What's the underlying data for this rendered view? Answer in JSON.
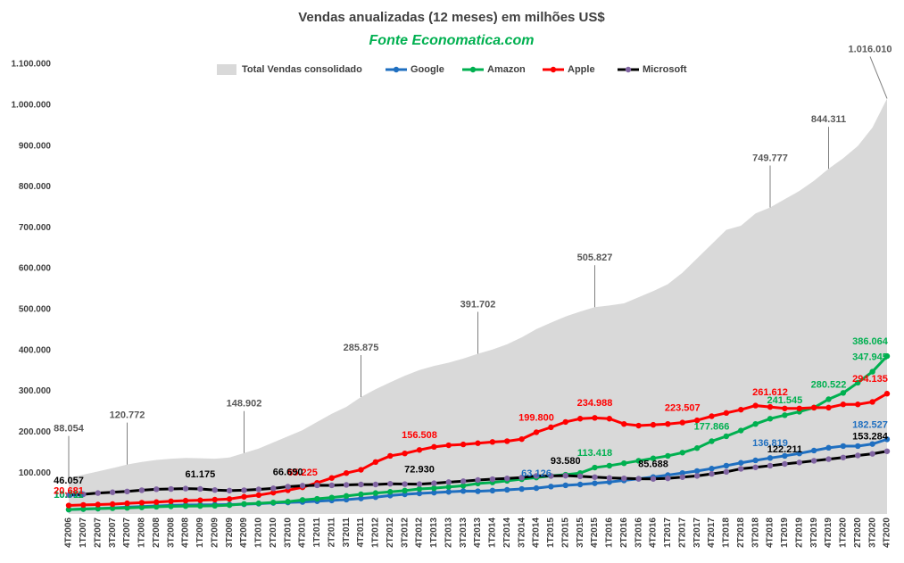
{
  "chart_data": {
    "type": "area_line",
    "title": "Vendas anualizadas (12 meses) em milhões  US$",
    "subtitle": "Fonte Economatica.com",
    "legend": "top",
    "categories": [
      "4T2006",
      "1T2007",
      "2T2007",
      "3T2007",
      "4T2007",
      "1T2008",
      "2T2008",
      "3T2008",
      "4T2008",
      "1T2009",
      "2T2009",
      "3T2009",
      "4T2009",
      "1T2010",
      "2T2010",
      "3T2010",
      "4T2010",
      "1T2011",
      "2T2011",
      "3T2011",
      "4T2011",
      "1T2012",
      "2T2012",
      "3T2012",
      "4T2012",
      "1T2013",
      "2T2013",
      "3T2013",
      "4T2013",
      "1T2014",
      "2T2014",
      "3T2014",
      "4T2014",
      "1T2015",
      "2T2015",
      "3T2015",
      "4T2015",
      "1T2016",
      "2T2016",
      "3T2016",
      "4T2016",
      "1T2017",
      "2T2017",
      "3T2017",
      "4T2017",
      "1T2018",
      "2T2018",
      "3T2018",
      "4T2018",
      "1T2019",
      "2T2019",
      "3T2019",
      "4T2019",
      "1T2020",
      "2T2020",
      "3T2020",
      "4T2020"
    ],
    "ylim": [
      0,
      1100000
    ],
    "yticks": [
      {
        "value": 100000,
        "label": "100.000"
      },
      {
        "value": 200000,
        "label": "200.000"
      },
      {
        "value": 300000,
        "label": "300.000"
      },
      {
        "value": 400000,
        "label": "400.000"
      },
      {
        "value": 500000,
        "label": "500.000"
      },
      {
        "value": 600000,
        "label": "600.000"
      },
      {
        "value": 700000,
        "label": "700.000"
      },
      {
        "value": 800000,
        "label": "800.000"
      },
      {
        "value": 900000,
        "label": "900.000"
      },
      {
        "value": 1000000,
        "label": "1.000.000"
      },
      {
        "value": 1100000,
        "label": "1.100.000"
      }
    ],
    "grid": false,
    "series": [
      {
        "name": "Total Vendas consolidado",
        "kind": "area",
        "color": "#d9d9d9",
        "label_color": "#595959",
        "values": [
          88054,
          96000,
          104000,
          112000,
          120772,
          127000,
          132000,
          135000,
          137000,
          136000,
          135000,
          138000,
          148902,
          160000,
          175000,
          190000,
          205000,
          225000,
          245000,
          262000,
          285875,
          305000,
          322000,
          338000,
          352000,
          362000,
          370000,
          380000,
          391702,
          402000,
          415000,
          432000,
          452000,
          468000,
          483000,
          495000,
          505827,
          510000,
          515000,
          530000,
          545000,
          562000,
          590000,
          625000,
          660000,
          695000,
          705000,
          735000,
          749777,
          770000,
          790000,
          815000,
          844311,
          870000,
          900000,
          945000,
          1016010
        ],
        "value_labels": [
          "88.054",
          null,
          null,
          null,
          "120.772",
          null,
          null,
          null,
          null,
          null,
          null,
          null,
          "148.902",
          null,
          null,
          null,
          null,
          null,
          null,
          null,
          "285.875",
          null,
          null,
          null,
          null,
          null,
          null,
          null,
          "391.702",
          null,
          null,
          null,
          null,
          null,
          null,
          null,
          "505.827",
          null,
          null,
          null,
          null,
          null,
          null,
          null,
          null,
          null,
          null,
          null,
          "749.777",
          null,
          null,
          null,
          "844.311",
          null,
          null,
          null,
          "1.016.010"
        ]
      },
      {
        "name": "Google",
        "kind": "line",
        "color": "#1f6fc0",
        "label_color": "#1f6fc0",
        "values": [
          10605,
          12000,
          13000,
          14500,
          16594,
          18000,
          19500,
          21000,
          21796,
          22000,
          22500,
          23000,
          23651,
          25000,
          27000,
          28000,
          29321,
          31000,
          33000,
          35000,
          37905,
          41000,
          45000,
          48000,
          50175,
          52000,
          54000,
          56000,
          55519,
          57000,
          59000,
          61000,
          63126,
          67000,
          70000,
          72000,
          74989,
          78000,
          82000,
          86000,
          90272,
          95000,
          100000,
          105000,
          110855,
          118000,
          125000,
          131000,
          136819,
          142000,
          148000,
          155000,
          161857,
          166000,
          166000,
          171000,
          182527
        ],
        "value_labels": [
          "10.605",
          null,
          null,
          null,
          null,
          null,
          null,
          null,
          null,
          null,
          null,
          null,
          null,
          null,
          null,
          null,
          null,
          null,
          null,
          null,
          null,
          null,
          null,
          null,
          null,
          null,
          null,
          null,
          null,
          null,
          null,
          null,
          "63.126",
          null,
          null,
          null,
          null,
          null,
          null,
          null,
          null,
          null,
          null,
          null,
          null,
          null,
          null,
          null,
          "136.819",
          null,
          null,
          null,
          null,
          null,
          null,
          null,
          "182.527"
        ]
      },
      {
        "name": "Amazon",
        "kind": "line",
        "color": "#00b050",
        "label_color": "#00b050",
        "values": [
          10711,
          12000,
          13000,
          14000,
          14835,
          16000,
          17500,
          18500,
          19166,
          19500,
          20000,
          21500,
          24509,
          26000,
          28000,
          30000,
          34204,
          37000,
          40000,
          44000,
          48077,
          51000,
          54000,
          57000,
          61093,
          63000,
          66000,
          69000,
          74452,
          77000,
          81000,
          85000,
          88988,
          93000,
          96000,
          100000,
          113418,
          118000,
          124000,
          130000,
          135987,
          142000,
          150000,
          161000,
          177866,
          190000,
          204000,
          220000,
          232887,
          241545,
          250000,
          260000,
          280522,
          296000,
          321000,
          347945,
          386064
        ],
        "value_labels": [
          "10.711",
          null,
          null,
          null,
          null,
          null,
          null,
          null,
          null,
          null,
          null,
          null,
          null,
          null,
          null,
          null,
          null,
          null,
          null,
          null,
          null,
          null,
          null,
          null,
          null,
          null,
          null,
          null,
          null,
          null,
          null,
          null,
          null,
          null,
          null,
          null,
          "113.418",
          null,
          null,
          null,
          null,
          null,
          null,
          null,
          "177.866",
          null,
          null,
          null,
          null,
          "241.545",
          null,
          null,
          "280.522",
          null,
          null,
          "347.945",
          "386.064"
        ]
      },
      {
        "name": "Apple",
        "kind": "line",
        "color": "#ff0000",
        "label_color": "#ff0000",
        "values": [
          20681,
          22000,
          23000,
          24000,
          26000,
          27500,
          29000,
          31000,
          32500,
          33500,
          35000,
          36500,
          42000,
          46000,
          52000,
          58000,
          65225,
          76000,
          88000,
          100000,
          108000,
          127000,
          142000,
          148000,
          156508,
          164000,
          168000,
          170000,
          173000,
          176000,
          178000,
          183000,
          199800,
          212000,
          225000,
          233000,
          234988,
          233000,
          220000,
          216000,
          218000,
          220000,
          223507,
          229000,
          239000,
          247000,
          255000,
          265000,
          261612,
          258000,
          258000,
          260000,
          260000,
          268000,
          268000,
          274000,
          294135
        ],
        "value_labels": [
          "20.681",
          null,
          null,
          null,
          null,
          null,
          null,
          null,
          null,
          null,
          null,
          null,
          null,
          null,
          null,
          null,
          "65.225",
          null,
          null,
          null,
          null,
          null,
          null,
          null,
          "156.508",
          null,
          null,
          null,
          null,
          null,
          null,
          null,
          "199.800",
          null,
          null,
          null,
          "234.988",
          null,
          null,
          null,
          null,
          null,
          "223.507",
          null,
          null,
          null,
          null,
          null,
          "261.612",
          null,
          null,
          null,
          null,
          null,
          null,
          null,
          "294.135"
        ]
      },
      {
        "name": "Microsoft",
        "kind": "line",
        "color": "#000000",
        "marker_color": "#8064a2",
        "label_color": "#000000",
        "values": [
          46057,
          48000,
          51122,
          53000,
          55000,
          58000,
          60420,
          61000,
          62000,
          61175,
          58437,
          57000,
          58000,
          60000,
          62484,
          66690,
          69000,
          70000,
          69943,
          71000,
          72000,
          72000,
          73723,
          73000,
          72930,
          75000,
          77849,
          80000,
          83000,
          85000,
          86833,
          89000,
          93000,
          93000,
          93580,
          92000,
          90000,
          88000,
          87000,
          86000,
          85688,
          87000,
          89950,
          93000,
          98000,
          103000,
          110360,
          114000,
          118000,
          122211,
          125843,
          130000,
          134000,
          138000,
          143015,
          147000,
          153284
        ],
        "value_labels": [
          "46.057",
          null,
          null,
          null,
          null,
          null,
          null,
          null,
          null,
          "61.175",
          null,
          null,
          null,
          null,
          null,
          "66.690",
          null,
          null,
          null,
          null,
          null,
          null,
          null,
          null,
          "72.930",
          null,
          null,
          null,
          null,
          null,
          null,
          null,
          null,
          null,
          "93.580",
          null,
          null,
          null,
          null,
          null,
          "85.688",
          null,
          null,
          null,
          null,
          null,
          null,
          null,
          null,
          "122.211",
          null,
          null,
          null,
          null,
          null,
          null,
          "153.284"
        ]
      }
    ]
  }
}
